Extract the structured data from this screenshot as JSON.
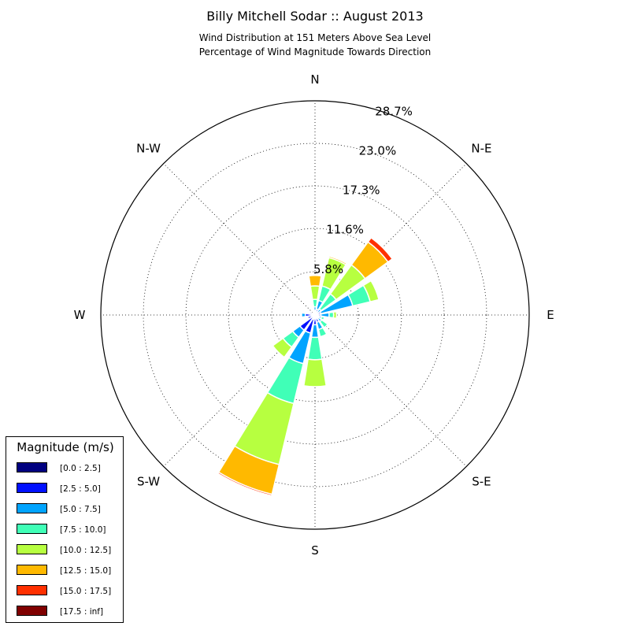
{
  "chart_data": {
    "type": "wind-rose",
    "title": "Billy Mitchell Sodar :: August 2013",
    "subtitle_lines": [
      "Wind Distribution at 151 Meters Above Sea Level",
      "Percentage of Wind Magnitude Towards Direction"
    ],
    "radial_max": 28.7,
    "radial_ticks": [
      5.8,
      11.6,
      17.3,
      23.0,
      28.7
    ],
    "radial_tick_labels": [
      "5.8%",
      "11.6%",
      "17.3%",
      "23.0%",
      "28.7%"
    ],
    "directions": [
      "N",
      "N-E",
      "E",
      "S-E",
      "S",
      "S-W",
      "W",
      "N-W"
    ],
    "direction_angles": [
      0,
      45,
      90,
      135,
      180,
      225,
      270,
      315
    ],
    "legend_title": "Magnitude (m/s)",
    "bins": [
      {
        "name": "[0.0 : 2.5]",
        "color": "#000080"
      },
      {
        "name": "[2.5 : 5.0]",
        "color": "#0010ff"
      },
      {
        "name": "[5.0 : 7.5]",
        "color": "#00a4ff"
      },
      {
        "name": "[7.5 : 10.0]",
        "color": "#40ffb7"
      },
      {
        "name": "[10.0 : 12.5]",
        "color": "#b7ff40"
      },
      {
        "name": "[12.5 : 15.0]",
        "color": "#ffb900"
      },
      {
        "name": "[15.0 : 17.5]",
        "color": "#ff3000"
      },
      {
        "name": "[17.5 : inf]",
        "color": "#800000"
      }
    ],
    "sectors": [
      {
        "direction_deg": 0,
        "cumulative": [
          0.2,
          0.6,
          1.1,
          2.1,
          3.9,
          5.3,
          5.3,
          5.3
        ]
      },
      {
        "direction_deg": 22.5,
        "cumulative": [
          0.2,
          0.8,
          2.0,
          4.0,
          7.9,
          8.1,
          8.1,
          8.1
        ]
      },
      {
        "direction_deg": 45,
        "cumulative": [
          0.1,
          0.3,
          1.0,
          3.5,
          8.3,
          12.1,
          12.8,
          12.8
        ]
      },
      {
        "direction_deg": 67.5,
        "cumulative": [
          0.2,
          0.8,
          5.2,
          7.6,
          8.8,
          8.8,
          8.8,
          8.8
        ]
      },
      {
        "direction_deg": 90,
        "cumulative": [
          0.3,
          0.8,
          1.9,
          2.5,
          2.9,
          2.9,
          2.9,
          2.9
        ]
      },
      {
        "direction_deg": 112.5,
        "cumulative": [
          0.2,
          0.6,
          0.9,
          1.3,
          1.3,
          1.3,
          1.3,
          1.3
        ]
      },
      {
        "direction_deg": 135,
        "cumulative": [
          0.2,
          0.6,
          1.1,
          2.1,
          2.1,
          2.1,
          2.1,
          2.1
        ]
      },
      {
        "direction_deg": 157.5,
        "cumulative": [
          0.3,
          1.0,
          2.0,
          3.0,
          3.0,
          3.0,
          3.0,
          3.0
        ]
      },
      {
        "direction_deg": 180,
        "cumulative": [
          0.3,
          1.3,
          3.0,
          6.0,
          9.6,
          9.6,
          9.6,
          9.6
        ]
      },
      {
        "direction_deg": 202.5,
        "cumulative": [
          0.6,
          2.5,
          6.7,
          12.2,
          20.6,
          24.7,
          24.9,
          24.9
        ]
      },
      {
        "direction_deg": 225,
        "cumulative": [
          0.3,
          2.5,
          3.7,
          5.3,
          7.0,
          7.0,
          7.0,
          7.0
        ]
      },
      {
        "direction_deg": 247.5,
        "cumulative": [
          0.3,
          1.0,
          1.0,
          1.0,
          1.0,
          1.0,
          1.0,
          1.0
        ]
      },
      {
        "direction_deg": 270,
        "cumulative": [
          0.2,
          1.3,
          1.8,
          1.8,
          1.8,
          1.8,
          1.8,
          1.8
        ]
      },
      {
        "direction_deg": 292.5,
        "cumulative": [
          0.2,
          0.7,
          0.7,
          0.7,
          0.7,
          0.7,
          0.7,
          0.7
        ]
      },
      {
        "direction_deg": 315,
        "cumulative": [
          0.2,
          0.4,
          0.4,
          0.4,
          0.4,
          0.4,
          0.4,
          0.4
        ]
      },
      {
        "direction_deg": 337.5,
        "cumulative": [
          0.2,
          0.4,
          0.4,
          0.4,
          0.4,
          0.4,
          0.4,
          0.4
        ]
      }
    ]
  }
}
